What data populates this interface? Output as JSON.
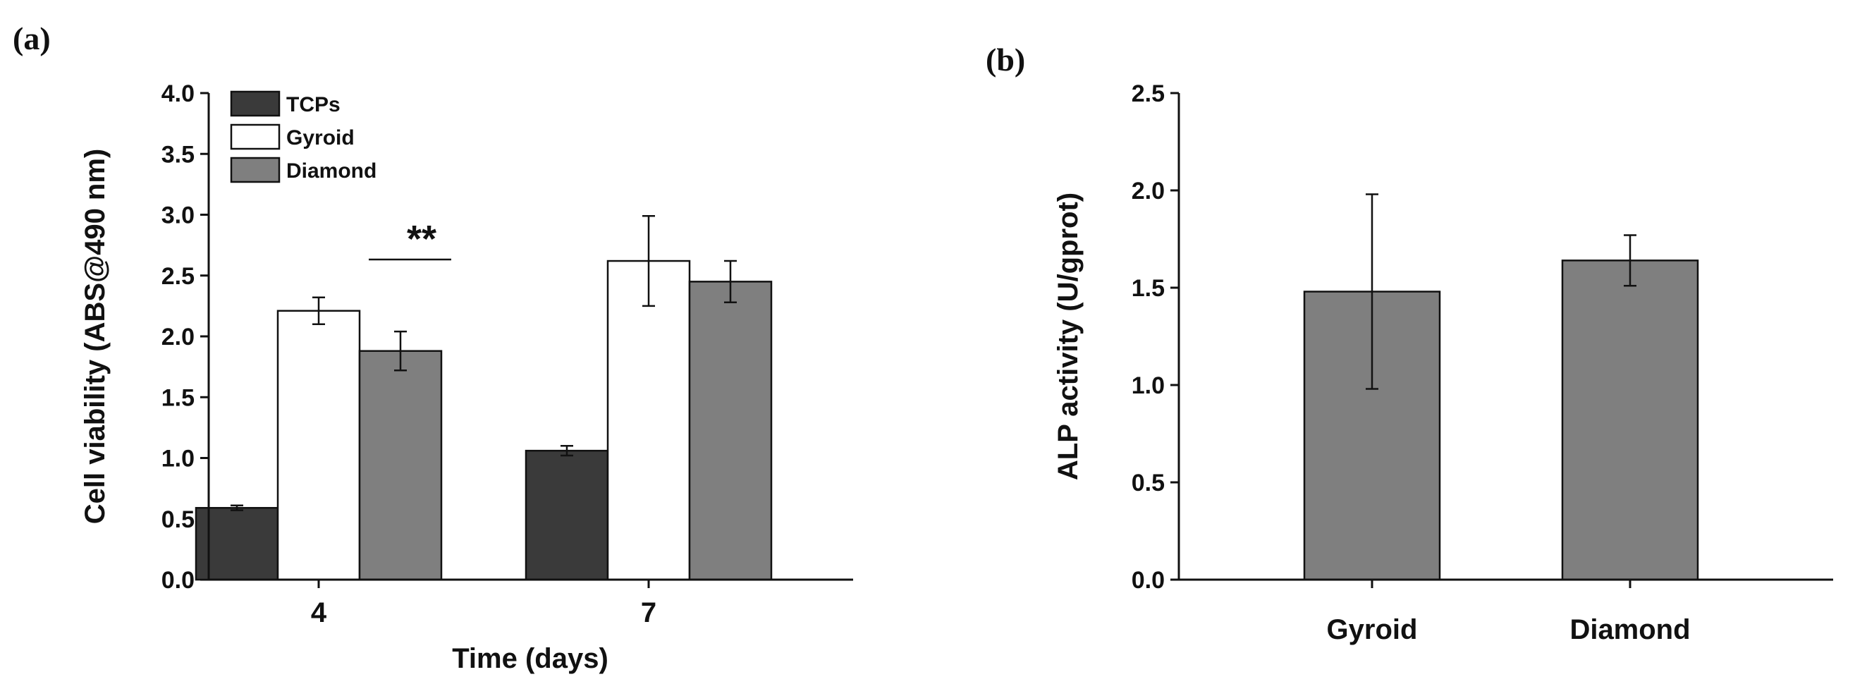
{
  "chart_data": [
    {
      "panel_label": "(a)",
      "type": "bar",
      "xlabel": "Time (days)",
      "ylabel": "Cell viability (ABS@490 nm)",
      "ylim": [
        0,
        4.0
      ],
      "y_ticks": [
        "0.0",
        "0.5",
        "1.0",
        "1.5",
        "2.0",
        "2.5",
        "3.0",
        "3.5",
        "4.0"
      ],
      "categories": [
        "4",
        "7"
      ],
      "series": [
        {
          "name": "TCPs",
          "color": "#3a3a3a",
          "values": [
            0.59,
            1.06
          ],
          "errors": [
            0.02,
            0.04
          ]
        },
        {
          "name": "Gyroid",
          "color": "#ffffff",
          "values": [
            2.21,
            2.62
          ],
          "errors": [
            0.11,
            0.37
          ]
        },
        {
          "name": "Diamond",
          "color": "#7f7f7f",
          "values": [
            1.88,
            2.45
          ],
          "errors": [
            0.16,
            0.17
          ]
        }
      ],
      "legend_position": "top-left",
      "annotation": {
        "text": "**",
        "between": "Gyroid vs Diamond at day 4"
      }
    },
    {
      "panel_label": "(b)",
      "type": "bar",
      "xlabel": "",
      "ylabel": "ALP activity (U/gprot)",
      "ylim": [
        0,
        2.5
      ],
      "y_ticks": [
        "0.0",
        "0.5",
        "1.0",
        "1.5",
        "2.0",
        "2.5"
      ],
      "categories": [
        "Gyroid",
        "Diamond"
      ],
      "series": [
        {
          "name": "ALP activity",
          "color": "#7f7f7f",
          "values": [
            1.48,
            1.64
          ],
          "errors": [
            0.5,
            0.13
          ]
        }
      ]
    }
  ]
}
